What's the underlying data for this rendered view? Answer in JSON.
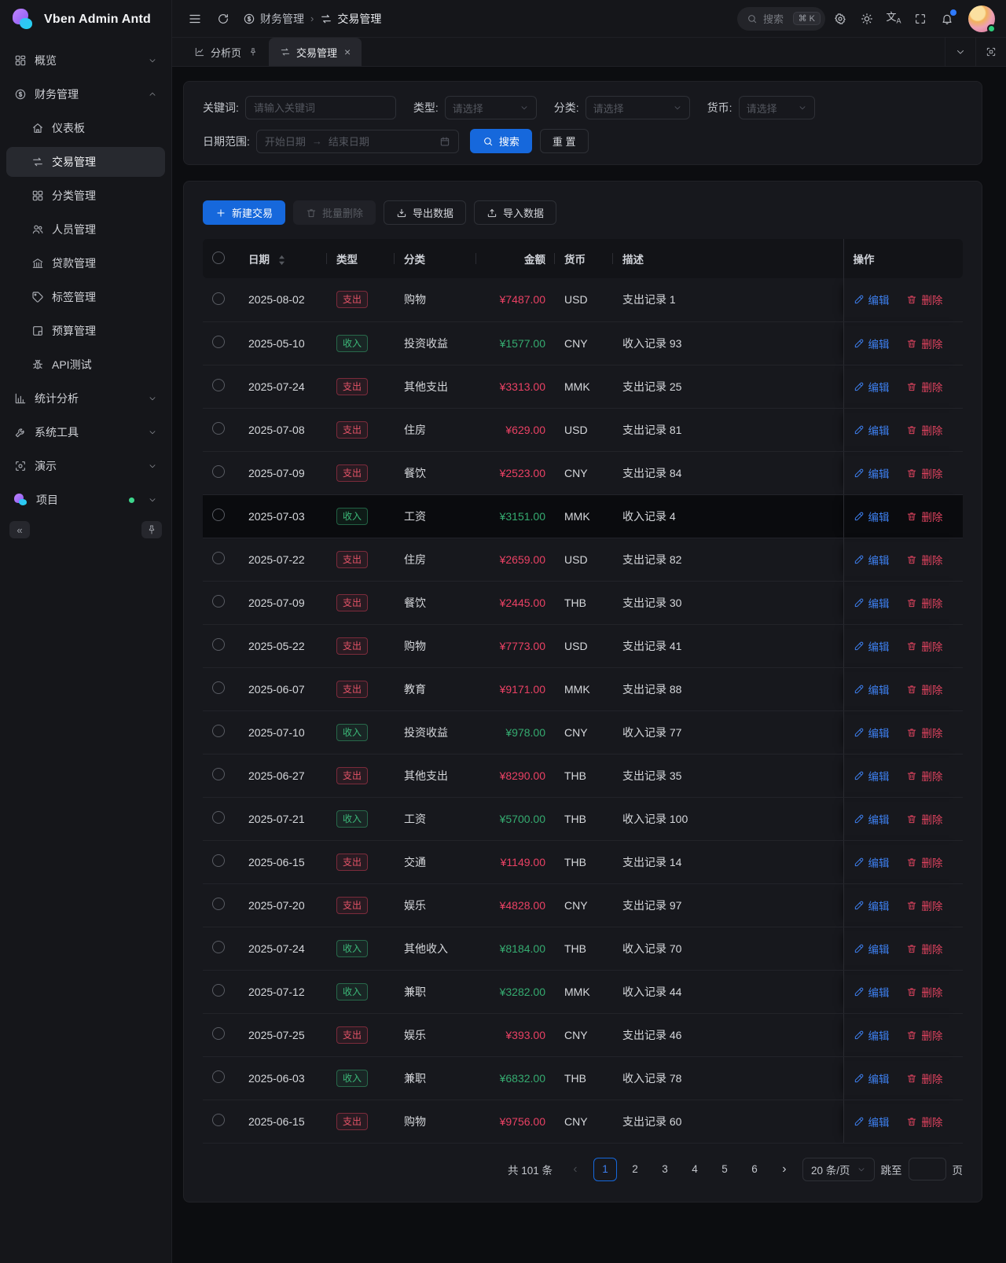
{
  "app": {
    "title": "Vben Admin Antd"
  },
  "colors": {
    "primary": "#1668dc",
    "expense_red": "#ea4164",
    "income_green": "#35ab70",
    "link_blue": "#3d7fee",
    "delete_red": "#e0435f"
  },
  "header": {
    "breadcrumb": [
      {
        "label": "财务管理"
      },
      {
        "label": "交易管理"
      }
    ],
    "breadcrumb_separator": "›",
    "search": {
      "placeholder": "搜索",
      "shortcut": "⌘ K"
    }
  },
  "tabs": [
    {
      "label": "分析页"
    },
    {
      "label": "交易管理",
      "close": "×"
    }
  ],
  "sidebar": {
    "items": [
      {
        "label": "概览"
      },
      {
        "label": "财务管理"
      },
      {
        "label": "仪表板"
      },
      {
        "label": "交易管理"
      },
      {
        "label": "分类管理"
      },
      {
        "label": "人员管理"
      },
      {
        "label": "贷款管理"
      },
      {
        "label": "标签管理"
      },
      {
        "label": "预算管理"
      },
      {
        "label": "API测试"
      },
      {
        "label": "统计分析"
      },
      {
        "label": "系统工具"
      },
      {
        "label": "演示"
      },
      {
        "label": "项目"
      }
    ],
    "collapse_glyph": "«"
  },
  "filters": {
    "keyword_label": "关键词:",
    "keyword_placeholder": "请输入关键词",
    "type_label": "类型:",
    "category_label": "分类:",
    "currency_label": "货币:",
    "select_placeholder": "请选择",
    "date_label": "日期范围:",
    "date_start_placeholder": "开始日期",
    "date_end_placeholder": "结束日期",
    "date_arrow": "→",
    "search_button": "搜索",
    "reset_button": "重 置"
  },
  "toolbar": {
    "create": "新建交易",
    "bulk_delete": "批量删除",
    "export": "导出数据",
    "import": "导入数据"
  },
  "table": {
    "columns": {
      "date": "日期",
      "type": "类型",
      "category": "分类",
      "amount": "金额",
      "currency": "货币",
      "desc": "描述",
      "actions": "操作"
    },
    "edit_label": "编辑",
    "delete_label": "删除",
    "rows": [
      {
        "date": "2025-08-02",
        "kind": "expense",
        "type": "支出",
        "category": "购物",
        "amount": "¥7487.00",
        "currency": "USD",
        "desc": "支出记录 1"
      },
      {
        "date": "2025-05-10",
        "kind": "income",
        "type": "收入",
        "category": "投资收益",
        "amount": "¥1577.00",
        "currency": "CNY",
        "desc": "收入记录 93"
      },
      {
        "date": "2025-07-24",
        "kind": "expense",
        "type": "支出",
        "category": "其他支出",
        "amount": "¥3313.00",
        "currency": "MMK",
        "desc": "支出记录 25"
      },
      {
        "date": "2025-07-08",
        "kind": "expense",
        "type": "支出",
        "category": "住房",
        "amount": "¥629.00",
        "currency": "USD",
        "desc": "支出记录 81"
      },
      {
        "date": "2025-07-09",
        "kind": "expense",
        "type": "支出",
        "category": "餐饮",
        "amount": "¥2523.00",
        "currency": "CNY",
        "desc": "支出记录 84"
      },
      {
        "date": "2025-07-03",
        "kind": "income",
        "type": "收入",
        "category": "工资",
        "amount": "¥3151.00",
        "currency": "MMK",
        "desc": "收入记录 4",
        "highlight": true
      },
      {
        "date": "2025-07-22",
        "kind": "expense",
        "type": "支出",
        "category": "住房",
        "amount": "¥2659.00",
        "currency": "USD",
        "desc": "支出记录 82"
      },
      {
        "date": "2025-07-09",
        "kind": "expense",
        "type": "支出",
        "category": "餐饮",
        "amount": "¥2445.00",
        "currency": "THB",
        "desc": "支出记录 30"
      },
      {
        "date": "2025-05-22",
        "kind": "expense",
        "type": "支出",
        "category": "购物",
        "amount": "¥7773.00",
        "currency": "USD",
        "desc": "支出记录 41"
      },
      {
        "date": "2025-06-07",
        "kind": "expense",
        "type": "支出",
        "category": "教育",
        "amount": "¥9171.00",
        "currency": "MMK",
        "desc": "支出记录 88"
      },
      {
        "date": "2025-07-10",
        "kind": "income",
        "type": "收入",
        "category": "投资收益",
        "amount": "¥978.00",
        "currency": "CNY",
        "desc": "收入记录 77"
      },
      {
        "date": "2025-06-27",
        "kind": "expense",
        "type": "支出",
        "category": "其他支出",
        "amount": "¥8290.00",
        "currency": "THB",
        "desc": "支出记录 35"
      },
      {
        "date": "2025-07-21",
        "kind": "income",
        "type": "收入",
        "category": "工资",
        "amount": "¥5700.00",
        "currency": "THB",
        "desc": "收入记录 100"
      },
      {
        "date": "2025-06-15",
        "kind": "expense",
        "type": "支出",
        "category": "交通",
        "amount": "¥1149.00",
        "currency": "THB",
        "desc": "支出记录 14"
      },
      {
        "date": "2025-07-20",
        "kind": "expense",
        "type": "支出",
        "category": "娱乐",
        "amount": "¥4828.00",
        "currency": "CNY",
        "desc": "支出记录 97"
      },
      {
        "date": "2025-07-24",
        "kind": "income",
        "type": "收入",
        "category": "其他收入",
        "amount": "¥8184.00",
        "currency": "THB",
        "desc": "收入记录 70"
      },
      {
        "date": "2025-07-12",
        "kind": "income",
        "type": "收入",
        "category": "兼职",
        "amount": "¥3282.00",
        "currency": "MMK",
        "desc": "收入记录 44"
      },
      {
        "date": "2025-07-25",
        "kind": "expense",
        "type": "支出",
        "category": "娱乐",
        "amount": "¥393.00",
        "currency": "CNY",
        "desc": "支出记录 46"
      },
      {
        "date": "2025-06-03",
        "kind": "income",
        "type": "收入",
        "category": "兼职",
        "amount": "¥6832.00",
        "currency": "THB",
        "desc": "收入记录 78"
      },
      {
        "date": "2025-06-15",
        "kind": "expense",
        "type": "支出",
        "category": "购物",
        "amount": "¥9756.00",
        "currency": "CNY",
        "desc": "支出记录 60"
      }
    ]
  },
  "pagination": {
    "total_text": "共 101 条",
    "prev": "‹",
    "next": "›",
    "pages": [
      1,
      2,
      3,
      4,
      5,
      6
    ],
    "current": 1,
    "page_size": "20 条/页",
    "jump_prefix": "跳至",
    "jump_suffix": "页"
  }
}
